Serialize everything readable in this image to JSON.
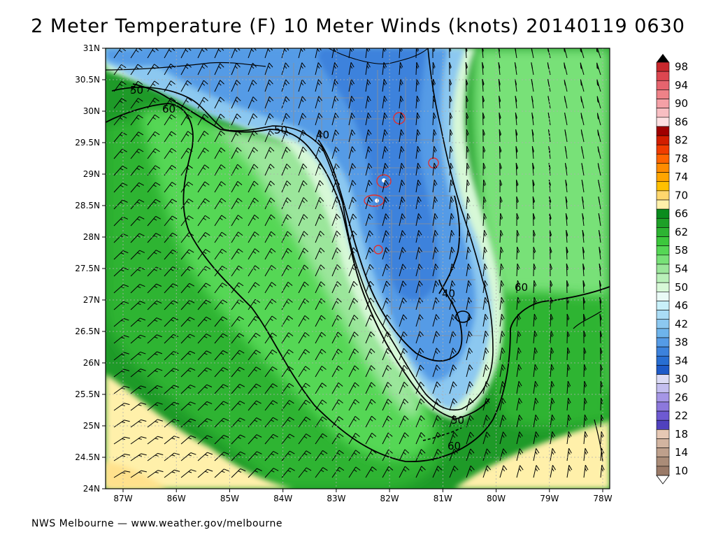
{
  "title": "2 Meter Temperature (F) 10 Meter Winds (knots) 20140119 0630",
  "footer": "NWS Melbourne — www.weather.gov/melbourne",
  "lat_labels": [
    "31N",
    "30.5N",
    "30N",
    "29.5N",
    "29N",
    "28.5N",
    "28N",
    "27.5N",
    "27N",
    "26.5N",
    "26N",
    "25.5N",
    "25N",
    "24.5N",
    "24N"
  ],
  "lon_labels": [
    "87W",
    "86W",
    "85W",
    "84W",
    "83W",
    "82W",
    "81W",
    "80W",
    "79W",
    "78W"
  ],
  "contour_labels": [
    "50",
    "60",
    "50",
    "40",
    "40",
    "60",
    "50",
    "60"
  ],
  "legend": [
    {
      "label": "98",
      "color": "#c8282d"
    },
    {
      "label": "",
      "color": "#dc4650"
    },
    {
      "label": "94",
      "color": "#e6646e"
    },
    {
      "label": "",
      "color": "#ee8288"
    },
    {
      "label": "90",
      "color": "#f4a0a6"
    },
    {
      "label": "",
      "color": "#f8bec2"
    },
    {
      "label": "86",
      "color": "#fde0e2"
    },
    {
      "label": "",
      "color": "#a00000"
    },
    {
      "label": "82",
      "color": "#d21e00"
    },
    {
      "label": "",
      "color": "#f03c00"
    },
    {
      "label": "78",
      "color": "#ff6400"
    },
    {
      "label": "",
      "color": "#ff8c00"
    },
    {
      "label": "74",
      "color": "#ffa500"
    },
    {
      "label": "",
      "color": "#ffc000"
    },
    {
      "label": "70",
      "color": "#ffd76e"
    },
    {
      "label": "",
      "color": "#fff0aa"
    },
    {
      "label": "66",
      "color": "#0a8c1e"
    },
    {
      "label": "",
      "color": "#1ea028"
    },
    {
      "label": "62",
      "color": "#2db432"
    },
    {
      "label": "",
      "color": "#3cc83c"
    },
    {
      "label": "58",
      "color": "#55d755"
    },
    {
      "label": "",
      "color": "#78e178"
    },
    {
      "label": "54",
      "color": "#9be69b"
    },
    {
      "label": "",
      "color": "#b9f0b9"
    },
    {
      "label": "50",
      "color": "#d7f8d7"
    },
    {
      "label": "",
      "color": "#eafaf6"
    },
    {
      "label": "46",
      "color": "#c8f0fa"
    },
    {
      "label": "",
      "color": "#aadcf5"
    },
    {
      "label": "42",
      "color": "#8cc8f0"
    },
    {
      "label": "",
      "color": "#6eb4eb"
    },
    {
      "label": "38",
      "color": "#559be6"
    },
    {
      "label": "",
      "color": "#3c82dc"
    },
    {
      "label": "34",
      "color": "#286ed2"
    },
    {
      "label": "",
      "color": "#1e5ac8"
    },
    {
      "label": "30",
      "color": "#dcdcf5"
    },
    {
      "label": "",
      "color": "#c3beef"
    },
    {
      "label": "26",
      "color": "#a596e6"
    },
    {
      "label": "",
      "color": "#8c78dc"
    },
    {
      "label": "22",
      "color": "#6e5ad2"
    },
    {
      "label": "",
      "color": "#5041be"
    },
    {
      "label": "18",
      "color": "#e6c8b4"
    },
    {
      "label": "",
      "color": "#d2b4a0"
    },
    {
      "label": "14",
      "color": "#beA08c"
    },
    {
      "label": "",
      "color": "#aa8c78"
    },
    {
      "label": "10",
      "color": "#9a7a68"
    }
  ],
  "colors": {
    "gulf_far": "#1e9a28",
    "gulf_mid": "#2db432",
    "gulf_mid2": "#55d755",
    "gulf_near": "#9be69b",
    "coast_pale": "#d7f8d7",
    "land_light": "#8cc8f0",
    "land_mid": "#559be6",
    "land_dark": "#3c82dc",
    "atl_far": "#78e178",
    "warm_water": "#fff0aa",
    "warm_water2": "#ffe18c",
    "contour": "#000000",
    "county": "#909090"
  }
}
